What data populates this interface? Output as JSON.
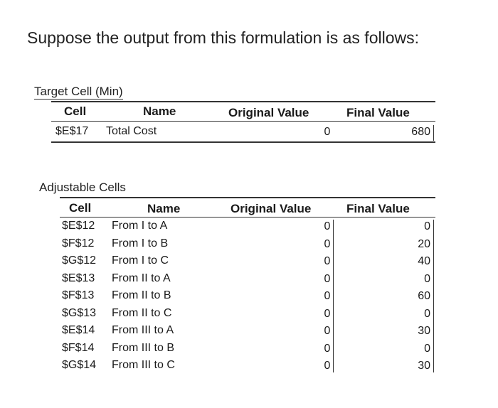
{
  "question": "Suppose the output from this formulation is as follows:",
  "target": {
    "title": "Target Cell (Min)",
    "headers": {
      "cell": "Cell",
      "name": "Name",
      "original": "Original Value",
      "final": "Final Value"
    },
    "row": {
      "cell": "$E$17",
      "name": "Total Cost",
      "original": "0",
      "final": "680"
    }
  },
  "adjustable": {
    "title": "Adjustable Cells",
    "headers": {
      "cell": "Cell",
      "name": "Name",
      "original": "Original Value",
      "final": "Final Value"
    },
    "rows": [
      {
        "cell": "$E$12",
        "name": "From I to A",
        "original": "0",
        "final": "0"
      },
      {
        "cell": "$F$12",
        "name": "From I to B",
        "original": "0",
        "final": "20"
      },
      {
        "cell": "$G$12",
        "name": "From I to C",
        "original": "0",
        "final": "40"
      },
      {
        "cell": "$E$13",
        "name": "From II to A",
        "original": "0",
        "final": "0"
      },
      {
        "cell": "$F$13",
        "name": "From II to B",
        "original": "0",
        "final": "60"
      },
      {
        "cell": "$G$13",
        "name": "From II to C",
        "original": "0",
        "final": "0"
      },
      {
        "cell": "$E$14",
        "name": "From III to A",
        "original": "0",
        "final": "30"
      },
      {
        "cell": "$F$14",
        "name": "From III to B",
        "original": "0",
        "final": "0"
      },
      {
        "cell": "$G$14",
        "name": "From III to C",
        "original": "0",
        "final": "30"
      }
    ]
  }
}
